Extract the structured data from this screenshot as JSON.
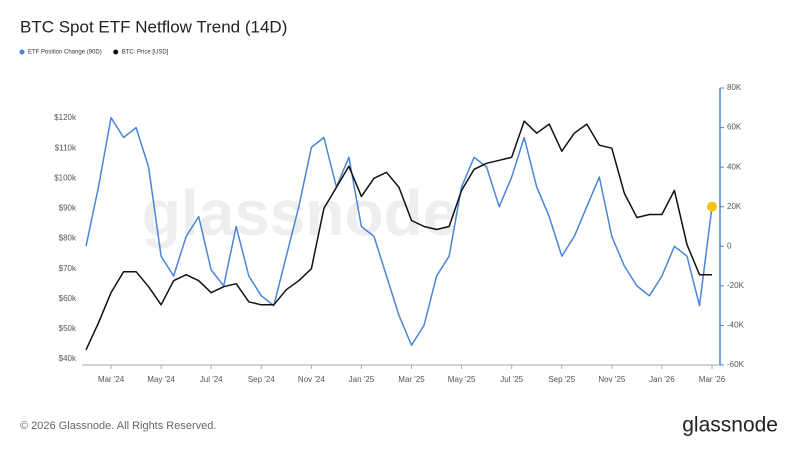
{
  "chart_data": {
    "type": "line",
    "title": "BTC Spot ETF Netflow Trend (14D)",
    "brand": "glassnode",
    "footer": "© 2026 Glassnode. All Rights Reserved.",
    "categories": [
      null,
      null,
      "Mar '24",
      null,
      null,
      null,
      "May '24",
      null,
      null,
      null,
      "Jul '24",
      null,
      null,
      null,
      "Sep '24",
      null,
      null,
      null,
      "Nov '24",
      null,
      null,
      null,
      "Jan '25",
      null,
      null,
      null,
      "Mar '25",
      null,
      null,
      null,
      "May '25",
      null,
      null,
      null,
      "Jul '25",
      null,
      null,
      null,
      "Sep '25",
      null,
      null,
      null,
      "Nov '25",
      null,
      null,
      null,
      "Jan '26",
      null,
      null,
      null,
      "Mar '26"
    ],
    "series": [
      {
        "name": "ETF Position Change (90D)",
        "color": "#4a86d6",
        "axis": "y2",
        "end_marker_color": "#f2c318",
        "values": [
          0,
          30000,
          65000,
          55000,
          60000,
          40000,
          -5000,
          -15000,
          5000,
          15000,
          -12000,
          -20000,
          10000,
          -15000,
          -25000,
          -30000,
          -5000,
          20000,
          50000,
          55000,
          30000,
          45000,
          10000,
          5000,
          -15000,
          -35000,
          -50000,
          -40000,
          -15000,
          -5000,
          30000,
          45000,
          40000,
          20000,
          35000,
          55000,
          30000,
          15000,
          -5000,
          5000,
          20000,
          35000,
          5000,
          -10000,
          -20000,
          -25000,
          -15000,
          0,
          -5000,
          -30000,
          20000
        ]
      },
      {
        "name": "BTC: Price [USD]",
        "color": "#111111",
        "values": [
          43000,
          52000,
          62000,
          69000,
          69000,
          64000,
          58000,
          66000,
          68000,
          66000,
          62000,
          64000,
          65000,
          59000,
          58000,
          58000,
          63000,
          66000,
          70000,
          90000,
          97000,
          104000,
          94000,
          100000,
          102000,
          97000,
          86000,
          84000,
          83000,
          84000,
          96000,
          103000,
          105000,
          106000,
          107000,
          119000,
          115000,
          118000,
          109000,
          115000,
          118000,
          111000,
          110000,
          95000,
          87000,
          88000,
          88000,
          96000,
          78000,
          68000,
          68000
        ]
      }
    ],
    "ylim": [
      38000,
      130000
    ],
    "yticks": [
      {
        "value": 40000,
        "label": "$40k"
      },
      {
        "value": 50000,
        "label": "$50k"
      },
      {
        "value": 60000,
        "label": "$60k"
      },
      {
        "value": 70000,
        "label": "$70k"
      },
      {
        "value": 80000,
        "label": "$80k"
      },
      {
        "value": 90000,
        "label": "$90k"
      },
      {
        "value": 100000,
        "label": "$100k"
      },
      {
        "value": 110000,
        "label": "$110k"
      },
      {
        "value": 120000,
        "label": "$120k"
      }
    ],
    "y2lim": [
      -60000,
      80000
    ],
    "y2ticks": [
      {
        "value": -60000,
        "label": "-60K"
      },
      {
        "value": -40000,
        "label": "-40K"
      },
      {
        "value": -20000,
        "label": "-20K"
      },
      0,
      {
        "value": 20000,
        "label": "20K"
      },
      {
        "value": 40000,
        "label": "40K"
      },
      {
        "value": 60000,
        "label": "60K"
      },
      {
        "value": 80000,
        "label": "80K"
      }
    ],
    "grid": false
  }
}
